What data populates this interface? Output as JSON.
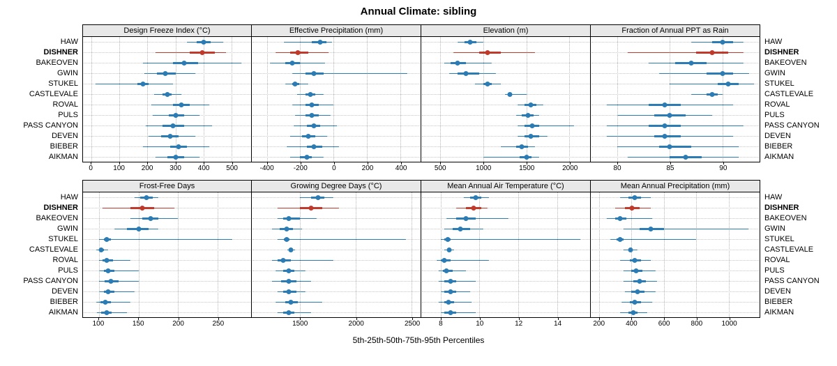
{
  "title": "Annual Climate: sibling",
  "footer": "5th-25th-50th-75th-95th Percentiles",
  "colors": {
    "series_blue": "#2b7cb5",
    "highlight_red": "#c0392b",
    "grid": "#c4c4c4",
    "panel_border": "#000000",
    "header_bg": "#e8e8e8"
  },
  "chart_data": {
    "type": "dot-whisker-percentiles",
    "percentile_labels": [
      "5th",
      "25th",
      "50th",
      "75th",
      "95th"
    ],
    "stations": [
      "HAW",
      "DISHNER",
      "BAKEOVEN",
      "GWIN",
      "STUKEL",
      "CASTLEVALE",
      "ROVAL",
      "PULS",
      "PASS CANYON",
      "DEVEN",
      "BIEBER",
      "AIKMAN"
    ],
    "highlight_station": "DISHNER",
    "layout": {
      "rows": 2,
      "cols": 4,
      "grid": "dotted",
      "legend": "none"
    },
    "panels": [
      {
        "title": "Design Freeze Index (°C)",
        "xlim": [
          -30,
          570
        ],
        "ticks": [
          0,
          100,
          200,
          300,
          400,
          500
        ],
        "values": [
          [
            340,
            375,
            400,
            425,
            470
          ],
          [
            230,
            350,
            395,
            440,
            480
          ],
          [
            185,
            290,
            330,
            380,
            535
          ],
          [
            190,
            235,
            265,
            300,
            370
          ],
          [
            15,
            165,
            185,
            205,
            290
          ],
          [
            225,
            255,
            270,
            285,
            320
          ],
          [
            215,
            290,
            320,
            350,
            420
          ],
          [
            220,
            275,
            300,
            330,
            385
          ],
          [
            195,
            255,
            290,
            330,
            430
          ],
          [
            205,
            250,
            280,
            310,
            370
          ],
          [
            185,
            280,
            310,
            340,
            420
          ],
          [
            230,
            270,
            300,
            330,
            385
          ]
        ]
      },
      {
        "title": "Effective Precipitation (mm)",
        "xlim": [
          -490,
          520
        ],
        "ticks": [
          -400,
          -200,
          0,
          200,
          400
        ],
        "values": [
          [
            -300,
            -130,
            -80,
            -45,
            -10
          ],
          [
            -350,
            -260,
            -215,
            -150,
            -30
          ],
          [
            -380,
            -290,
            -250,
            -200,
            -50
          ],
          [
            -250,
            -170,
            -120,
            -60,
            440
          ],
          [
            -290,
            -250,
            -230,
            -205,
            -150
          ],
          [
            -220,
            -170,
            -140,
            -110,
            -60
          ],
          [
            -250,
            -170,
            -130,
            -90,
            0
          ],
          [
            -230,
            -170,
            -130,
            -90,
            -20
          ],
          [
            -240,
            -160,
            -120,
            -80,
            20
          ],
          [
            -260,
            -190,
            -150,
            -110,
            -40
          ],
          [
            -280,
            -160,
            -120,
            -70,
            30
          ],
          [
            -260,
            -200,
            -160,
            -130,
            -60
          ]
        ]
      },
      {
        "title": "Elevation (m)",
        "xlim": [
          280,
          2240
        ],
        "ticks": [
          500,
          1000,
          1500,
          2000
        ],
        "values": [
          [
            700,
            780,
            850,
            920,
            1000
          ],
          [
            650,
            950,
            1050,
            1200,
            1600
          ],
          [
            550,
            620,
            700,
            800,
            1100
          ],
          [
            600,
            700,
            800,
            950,
            1150
          ],
          [
            900,
            1000,
            1050,
            1100,
            1200
          ],
          [
            1250,
            1290,
            1310,
            1330,
            1500
          ],
          [
            1400,
            1480,
            1550,
            1620,
            1700
          ],
          [
            1380,
            1450,
            1520,
            1580,
            1650
          ],
          [
            1400,
            1480,
            1570,
            1650,
            2050
          ],
          [
            1400,
            1480,
            1550,
            1650,
            1750
          ],
          [
            1200,
            1380,
            1450,
            1520,
            1600
          ],
          [
            1000,
            1420,
            1500,
            1560,
            1650
          ]
        ]
      },
      {
        "title": "Fraction of Annual PPT as Rain",
        "xlim": [
          77.5,
          93.5
        ],
        "ticks": [
          80,
          85,
          90
        ],
        "values": [
          [
            87,
            89,
            90,
            91,
            92
          ],
          [
            81,
            87.5,
            89,
            90.5,
            92
          ],
          [
            83,
            85.5,
            87,
            88.5,
            92
          ],
          [
            84,
            88.5,
            90,
            91,
            92.5
          ],
          [
            85,
            89.5,
            90.5,
            91.5,
            93
          ],
          [
            87,
            88.5,
            89,
            89.5,
            90
          ],
          [
            79,
            83,
            84.5,
            86,
            91
          ],
          [
            80,
            83.5,
            85,
            86.5,
            89
          ],
          [
            79,
            83,
            84.5,
            86,
            92
          ],
          [
            79,
            83.5,
            84.5,
            86,
            91
          ],
          [
            80,
            84,
            85,
            87,
            91.5
          ],
          [
            81,
            85,
            86.5,
            88,
            91.5
          ]
        ]
      },
      {
        "title": "Frost-Free Days",
        "xlim": [
          80,
          292
        ],
        "ticks": [
          100,
          150,
          200,
          250
        ],
        "values": [
          [
            145,
            152,
            160,
            168,
            175
          ],
          [
            105,
            140,
            155,
            170,
            195
          ],
          [
            140,
            155,
            165,
            175,
            200
          ],
          [
            120,
            135,
            150,
            163,
            175
          ],
          [
            100,
            106,
            110,
            115,
            268
          ],
          [
            97,
            100,
            103,
            106,
            112
          ],
          [
            100,
            105,
            110,
            118,
            140
          ],
          [
            100,
            106,
            112,
            120,
            150
          ],
          [
            100,
            107,
            115,
            125,
            150
          ],
          [
            100,
            106,
            112,
            120,
            145
          ],
          [
            97,
            102,
            108,
            115,
            140
          ],
          [
            98,
            103,
            110,
            116,
            135
          ]
        ]
      },
      {
        "title": "Growing Degree Days (°C)",
        "xlim": [
          1070,
          2580
        ],
        "ticks": [
          1500,
          2000,
          2500
        ],
        "values": [
          [
            1500,
            1600,
            1660,
            1720,
            1800
          ],
          [
            1300,
            1500,
            1600,
            1700,
            1850
          ],
          [
            1300,
            1350,
            1400,
            1500,
            1650
          ],
          [
            1250,
            1320,
            1380,
            1440,
            1520
          ],
          [
            1300,
            1360,
            1385,
            1410,
            2450
          ],
          [
            1390,
            1410,
            1420,
            1430,
            1455
          ],
          [
            1250,
            1300,
            1350,
            1420,
            1800
          ],
          [
            1280,
            1350,
            1400,
            1450,
            1550
          ],
          [
            1250,
            1330,
            1400,
            1470,
            1600
          ],
          [
            1300,
            1350,
            1400,
            1470,
            1550
          ],
          [
            1280,
            1370,
            1420,
            1480,
            1700
          ],
          [
            1300,
            1350,
            1400,
            1450,
            1600
          ]
        ]
      },
      {
        "title": "Mean Annual Air Temperature (°C)",
        "xlim": [
          7.0,
          15.7
        ],
        "ticks": [
          8,
          10,
          12,
          14
        ],
        "values": [
          [
            9.2,
            9.5,
            9.8,
            10.1,
            10.5
          ],
          [
            8.8,
            9.3,
            9.7,
            10.1,
            10.4
          ],
          [
            8.3,
            8.8,
            9.3,
            9.8,
            11.5
          ],
          [
            8.2,
            8.6,
            9.0,
            9.5,
            10.2
          ],
          [
            8.0,
            8.2,
            8.35,
            8.5,
            15.2
          ],
          [
            8.2,
            8.35,
            8.45,
            8.55,
            8.7
          ],
          [
            7.8,
            8.0,
            8.2,
            8.5,
            10.5
          ],
          [
            7.9,
            8.1,
            8.3,
            8.6,
            9.3
          ],
          [
            7.9,
            8.2,
            8.5,
            8.8,
            9.8
          ],
          [
            8.0,
            8.2,
            8.5,
            8.8,
            9.5
          ],
          [
            7.9,
            8.2,
            8.4,
            8.7,
            9.6
          ],
          [
            8.0,
            8.2,
            8.5,
            8.8,
            9.8
          ]
        ]
      },
      {
        "title": "Mean Annual Precipitation (mm)",
        "xlim": [
          150,
          1190
        ],
        "ticks": [
          200,
          400,
          600,
          800,
          1000
        ],
        "values": [
          [
            330,
            380,
            420,
            460,
            520
          ],
          [
            300,
            360,
            405,
            450,
            520
          ],
          [
            250,
            300,
            330,
            370,
            530
          ],
          [
            350,
            450,
            520,
            600,
            1120
          ],
          [
            270,
            310,
            330,
            350,
            800
          ],
          [
            350,
            380,
            395,
            410,
            440
          ],
          [
            330,
            390,
            420,
            460,
            520
          ],
          [
            350,
            400,
            430,
            470,
            550
          ],
          [
            350,
            410,
            450,
            490,
            560
          ],
          [
            360,
            400,
            440,
            480,
            550
          ],
          [
            340,
            390,
            420,
            460,
            530
          ],
          [
            330,
            380,
            410,
            440,
            500
          ]
        ]
      }
    ]
  }
}
